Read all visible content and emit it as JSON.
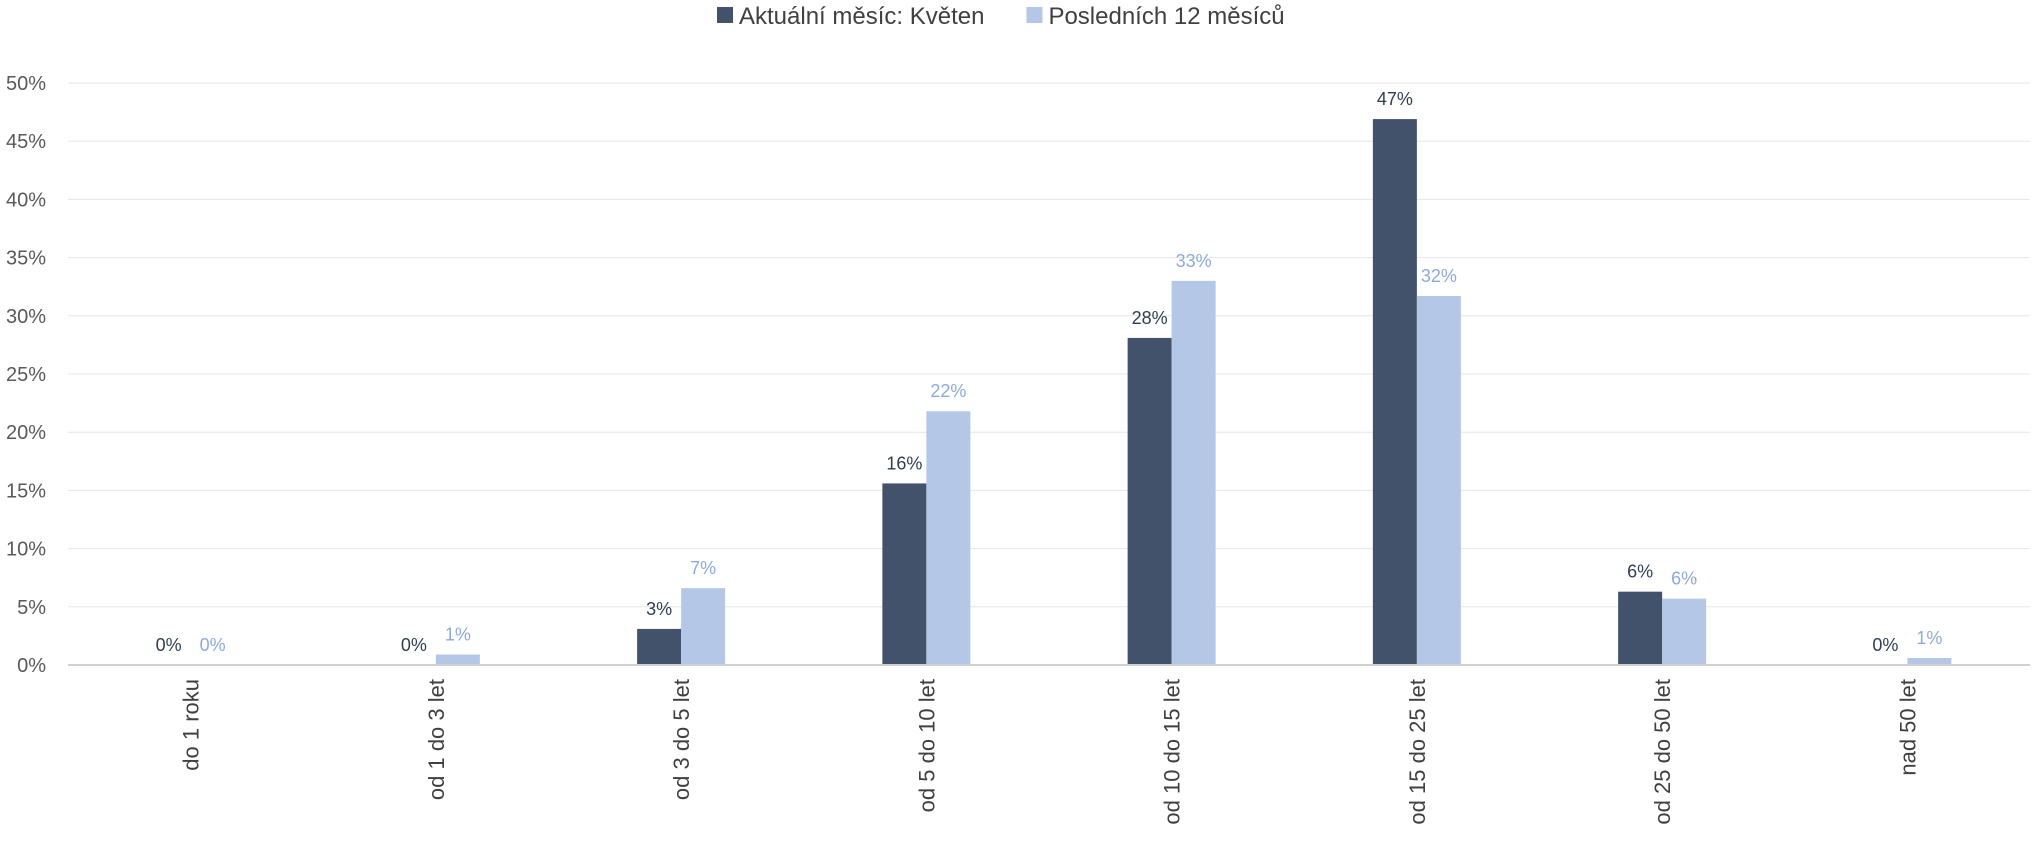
{
  "chart_data": {
    "type": "bar",
    "categories": [
      "do 1 roku",
      "od 1 do 3 let",
      "od 3 do 5 let",
      "od 5 do 10 let",
      "od 10 do 15 let",
      "od 15 do 25 let",
      "od 25 do 50 let",
      "nad 50 let"
    ],
    "series": [
      {
        "name": "Aktuální měsíc: Květen",
        "color": "#41526a",
        "label_color": "#2f3e52",
        "values": [
          0,
          0,
          3.1,
          15.6,
          28.1,
          46.9,
          6.3,
          0
        ],
        "labels": [
          "0%",
          "0%",
          "3%",
          "16%",
          "28%",
          "47%",
          "6%",
          "0%"
        ]
      },
      {
        "name": "Posledních 12 měsíců",
        "color": "#b4c7e7",
        "label_color": "#8eaadb",
        "values": [
          0,
          0.9,
          6.6,
          21.8,
          33.0,
          31.7,
          5.7,
          0.6
        ],
        "labels": [
          "0%",
          "1%",
          "7%",
          "22%",
          "33%",
          "32%",
          "6%",
          "1%"
        ]
      }
    ],
    "y_ticks": [
      "0%",
      "5%",
      "10%",
      "15%",
      "20%",
      "25%",
      "30%",
      "35%",
      "40%",
      "45%",
      "50%"
    ],
    "ylim": [
      0,
      50
    ],
    "grid": true,
    "legend_position": "top-center",
    "title": "",
    "xlabel": "",
    "ylabel": ""
  }
}
